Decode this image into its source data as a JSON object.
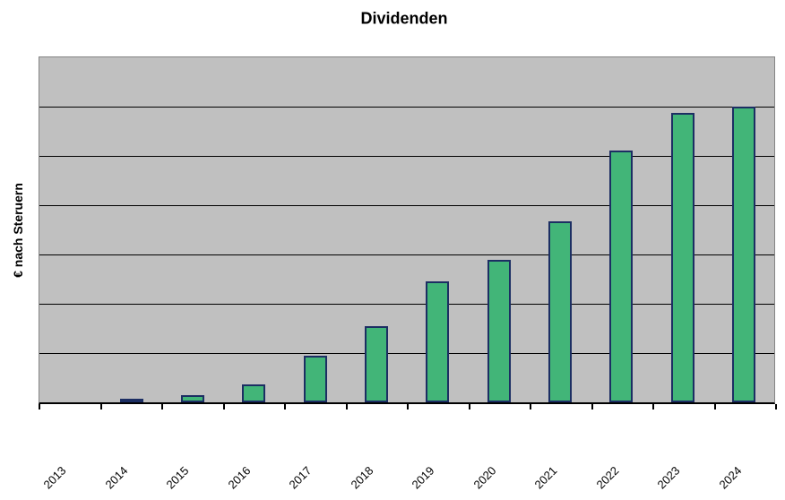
{
  "chart_data": {
    "type": "bar",
    "title": "Dividenden",
    "xlabel": "",
    "ylabel": "€ nach Steruern",
    "categories": [
      "2013",
      "2014",
      "2015",
      "2016",
      "2017",
      "2018",
      "2019",
      "2020",
      "2021",
      "2022",
      "2023",
      "2024"
    ],
    "values": [
      0,
      8,
      15,
      36,
      95,
      155,
      245,
      289,
      368,
      511,
      588,
      600
    ],
    "value_units": "relative (no y tick labels shown; one gridline interval = 100)",
    "ylim": [
      0,
      700
    ],
    "gridline_interval": 100,
    "y_tick_labels_visible": false,
    "x_tick_rotation_deg": 45,
    "grid": true,
    "legend_position": "none",
    "colors": {
      "bar_fill": "#42b578",
      "bar_border": "#1c2e63",
      "plot_background": "#c0c0c0",
      "plot_border": "#848484",
      "gridline": "#000000",
      "axis_line": "#000000",
      "text": "#000000",
      "page_background": "#ffffff"
    }
  }
}
